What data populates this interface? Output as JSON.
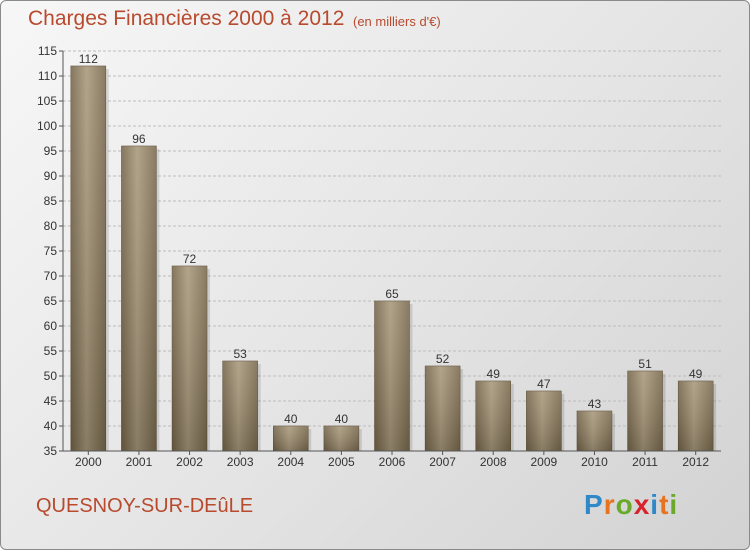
{
  "chart_data": {
    "type": "bar",
    "title": "Charges Financières 2000 à 2012",
    "subtitle": "(en milliers d'€)",
    "categories": [
      "2000",
      "2001",
      "2002",
      "2003",
      "2004",
      "2005",
      "2006",
      "2007",
      "2008",
      "2009",
      "2010",
      "2011",
      "2012"
    ],
    "values": [
      112,
      96,
      72,
      53,
      40,
      40,
      65,
      52,
      49,
      47,
      43,
      51,
      49
    ],
    "ylim": [
      35,
      115
    ],
    "yticks": [
      35,
      40,
      45,
      50,
      55,
      60,
      65,
      70,
      75,
      80,
      85,
      90,
      95,
      100,
      105,
      110,
      115
    ],
    "grid": true,
    "bar_color": "#8c7a5c",
    "label_color": "#333333"
  },
  "footer": {
    "commune": "QUESNOY-SUR-DEûLE",
    "brand_letters": [
      "P",
      "r",
      "o",
      "x",
      "i",
      "t",
      "i"
    ],
    "brand_colors": [
      "#2f88c8",
      "#e8731e",
      "#6aaa2a",
      "#d8232a",
      "#2f88c8",
      "#e8731e",
      "#6aaa2a"
    ]
  },
  "colors": {
    "title": "#b84a2e",
    "axis": "#555555",
    "grid": "#bdbdbd"
  }
}
